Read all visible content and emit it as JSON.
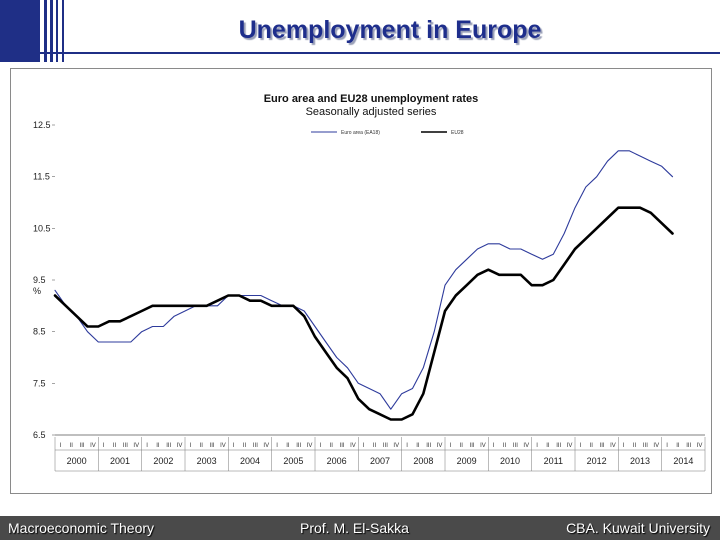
{
  "slide": {
    "title": "Unemployment in Europe",
    "footer_left": "Macroeconomic Theory",
    "footer_center": "Prof. M. El-Sakka",
    "footer_right": "CBA. Kuwait University"
  },
  "colors": {
    "title": "#1e2e8c",
    "deco": "#1f2f86",
    "footer_bg": "#4a4a4a",
    "series_euro": "#2e3b9c",
    "series_eu28": "#000000"
  },
  "chart_data": {
    "type": "line",
    "title": "Euro area and EU28 unemployment rates",
    "subtitle": "Seasonally adjusted series",
    "ylabel": "%",
    "ylim": [
      6.5,
      12.5
    ],
    "yticks": [
      "6.5",
      "7.5",
      "8.5",
      "9.5",
      "10.5",
      "11.5",
      "12.5"
    ],
    "years": [
      "2000",
      "2001",
      "2002",
      "2003",
      "2004",
      "2005",
      "2006",
      "2007",
      "2008",
      "2009",
      "2010",
      "2011",
      "2012",
      "2013",
      "2014"
    ],
    "quarters": [
      "I",
      "II",
      "III",
      "IV"
    ],
    "legend": [
      "Euro area (EA18)",
      "EU28"
    ],
    "x": [
      2000.0,
      2000.25,
      2000.5,
      2000.75,
      2001.0,
      2001.25,
      2001.5,
      2001.75,
      2002.0,
      2002.25,
      2002.5,
      2002.75,
      2003.0,
      2003.25,
      2003.5,
      2003.75,
      2004.0,
      2004.25,
      2004.5,
      2004.75,
      2005.0,
      2005.25,
      2005.5,
      2005.75,
      2006.0,
      2006.25,
      2006.5,
      2006.75,
      2007.0,
      2007.25,
      2007.5,
      2007.75,
      2008.0,
      2008.25,
      2008.5,
      2008.75,
      2009.0,
      2009.25,
      2009.5,
      2009.75,
      2010.0,
      2010.25,
      2010.5,
      2010.75,
      2011.0,
      2011.25,
      2011.5,
      2011.75,
      2012.0,
      2012.25,
      2012.5,
      2012.75,
      2013.0,
      2013.25,
      2013.5,
      2013.75,
      2014.0,
      2014.25
    ],
    "series": [
      {
        "name": "Euro area (EA18)",
        "values": [
          9.3,
          9.0,
          8.8,
          8.5,
          8.3,
          8.3,
          8.3,
          8.3,
          8.5,
          8.6,
          8.6,
          8.8,
          8.9,
          9.0,
          9.0,
          9.0,
          9.2,
          9.2,
          9.2,
          9.2,
          9.1,
          9.0,
          9.0,
          8.9,
          8.6,
          8.3,
          8.0,
          7.8,
          7.5,
          7.4,
          7.3,
          7.0,
          7.3,
          7.4,
          7.8,
          8.5,
          9.4,
          9.7,
          9.9,
          10.1,
          10.2,
          10.2,
          10.1,
          10.1,
          10.0,
          9.9,
          10.0,
          10.4,
          10.9,
          11.3,
          11.5,
          11.8,
          12.0,
          12.0,
          11.9,
          11.8,
          11.7,
          11.5
        ]
      },
      {
        "name": "EU28",
        "values": [
          9.2,
          9.0,
          8.8,
          8.6,
          8.6,
          8.7,
          8.7,
          8.8,
          8.9,
          9.0,
          9.0,
          9.0,
          9.0,
          9.0,
          9.0,
          9.1,
          9.2,
          9.2,
          9.1,
          9.1,
          9.0,
          9.0,
          9.0,
          8.8,
          8.4,
          8.1,
          7.8,
          7.6,
          7.2,
          7.0,
          6.9,
          6.8,
          6.8,
          6.9,
          7.3,
          8.1,
          8.9,
          9.2,
          9.4,
          9.6,
          9.7,
          9.6,
          9.6,
          9.6,
          9.4,
          9.4,
          9.5,
          9.8,
          10.1,
          10.3,
          10.5,
          10.7,
          10.9,
          10.9,
          10.9,
          10.8,
          10.6,
          10.4
        ]
      }
    ]
  }
}
